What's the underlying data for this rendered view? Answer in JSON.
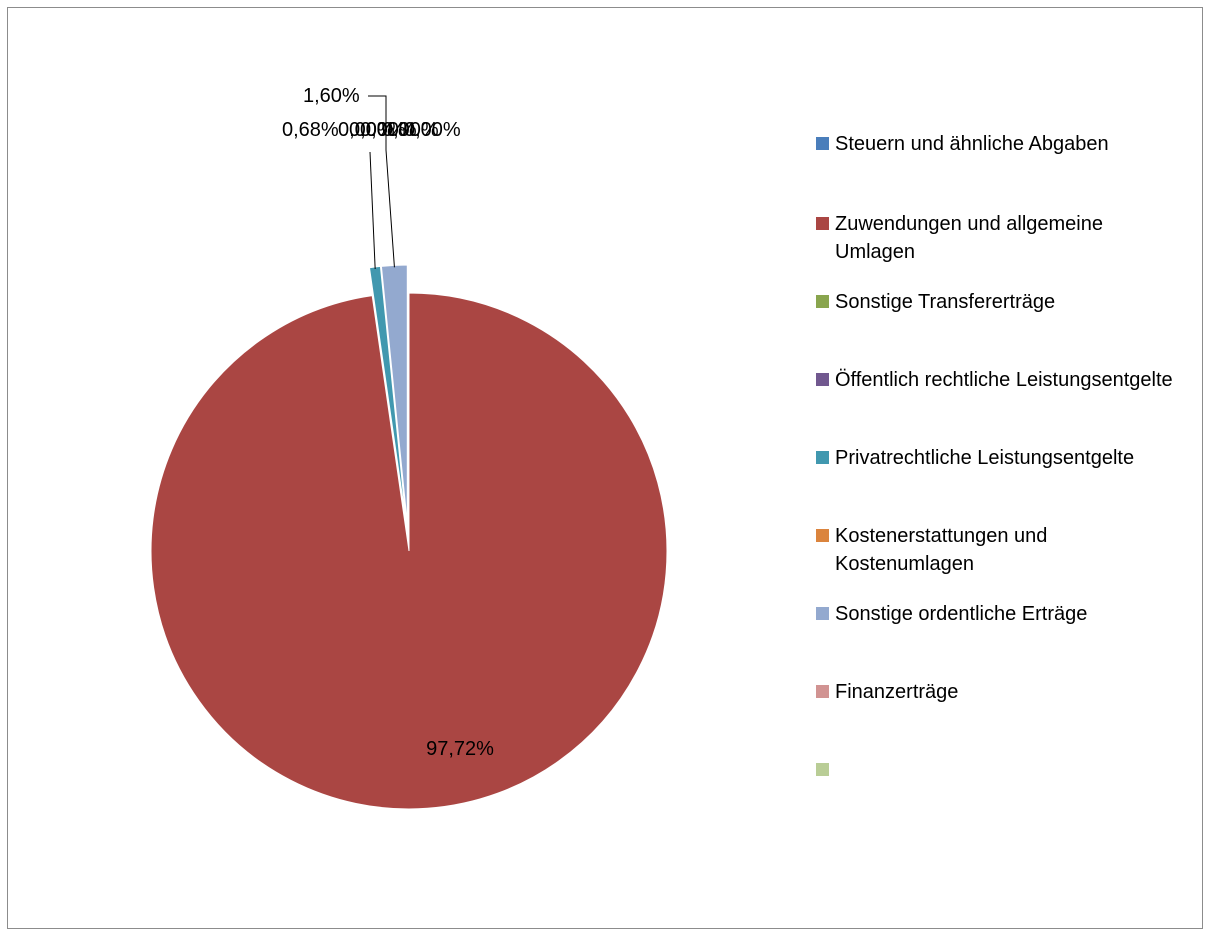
{
  "chart_data": {
    "type": "pie",
    "start_angle_deg": 0,
    "slices": [
      {
        "name": "Steuern und ähnliche Abgaben",
        "value": 0.0,
        "label": "0,00%",
        "color": "#4a7ebb"
      },
      {
        "name": "Zuwendungen und allgemeine Umlagen",
        "value": 97.72,
        "label": "97,72%",
        "color": "#aa4643"
      },
      {
        "name": "Sonstige Transfererträge",
        "value": 0.0,
        "label": "0,00%",
        "color": "#89a54e"
      },
      {
        "name": "Öffentlich rechtliche Leistungsentgelte",
        "value": 0.0,
        "label": "0,00%",
        "color": "#71588f"
      },
      {
        "name": "Privatrechtliche Leistungsentgelte",
        "value": 0.68,
        "label": "0,68%",
        "color": "#4198af"
      },
      {
        "name": "Kostenerstattungen und Kostenumlagen",
        "value": 0.0,
        "label": "0,00%",
        "color": "#db843d"
      },
      {
        "name": "Sonstige ordentliche Erträge",
        "value": 1.6,
        "label": "1,60%",
        "color": "#93a9cf"
      },
      {
        "name": "Finanzerträge",
        "value": 0.0,
        "label": "0,00%",
        "color": "#d19392"
      },
      {
        "name": "",
        "value": 0.0,
        "label": "",
        "color": "#b9cd96"
      }
    ],
    "legend_position": "right"
  }
}
